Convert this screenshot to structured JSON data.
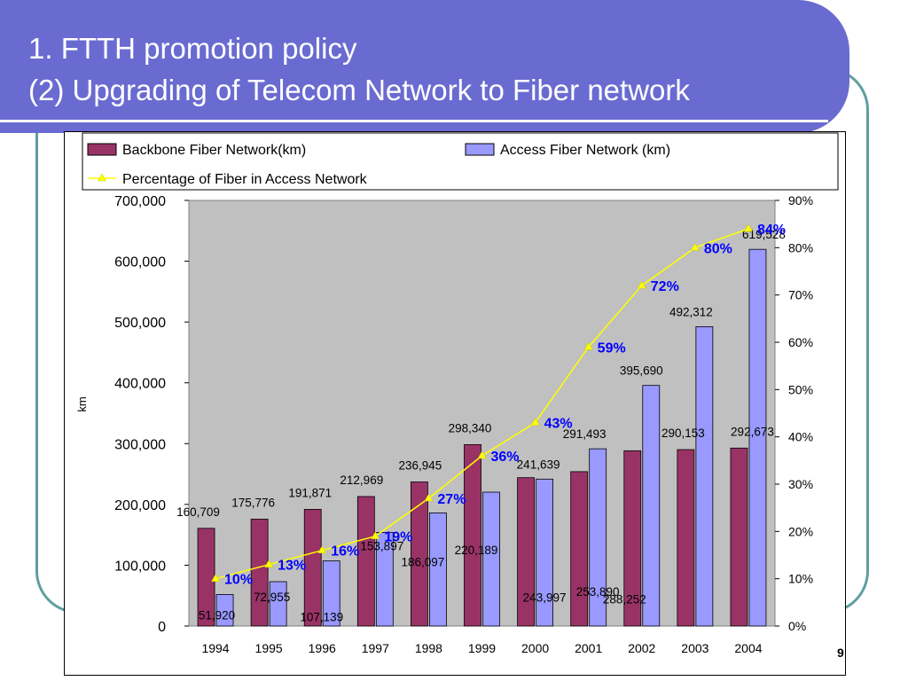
{
  "slide": {
    "title_line1": "1. FTTH promotion policy",
    "title_line2": "(2) Upgrading of Telecom Network to Fiber network",
    "page_number": "9"
  },
  "chart_data": {
    "type": "bar",
    "categories": [
      "1994",
      "1995",
      "1996",
      "1997",
      "1998",
      "1999",
      "2000",
      "2001",
      "2002",
      "2003",
      "2004"
    ],
    "series": [
      {
        "name": "Backbone Fiber Network(km)",
        "type": "bar",
        "axis": "left",
        "color": "#993366",
        "values": [
          160709,
          175776,
          191871,
          212969,
          236945,
          298340,
          243997,
          253890,
          288252,
          290153,
          292673
        ],
        "labels": [
          "160,709",
          "175,776",
          "191,871",
          "212,969",
          "236,945",
          "298,340",
          "243,997",
          "253,890",
          "288,252",
          "290,153",
          "292,673"
        ]
      },
      {
        "name": "Access Fiber Network (km)",
        "type": "bar",
        "axis": "left",
        "color": "#9999ff",
        "values": [
          51920,
          72955,
          107139,
          153897,
          186097,
          220189,
          241639,
          291493,
          395690,
          492312,
          619528
        ],
        "labels": [
          "51,920",
          "72,955",
          "107,139",
          "153,897",
          "186,097",
          "220,189",
          "241,639",
          "291,493",
          "395,690",
          "492,312",
          "619,528"
        ]
      },
      {
        "name": "Percentage of Fiber in Access Network",
        "type": "line",
        "axis": "right",
        "color": "#ffff00",
        "values": [
          10,
          13,
          16,
          19,
          27,
          36,
          43,
          59,
          72,
          80,
          84
        ],
        "labels": [
          "10%",
          "13%",
          "16%",
          "19%",
          "27%",
          "36%",
          "43%",
          "59%",
          "72%",
          "80%",
          "84%"
        ]
      }
    ],
    "ylabel": "km",
    "ylim": [
      0,
      700000
    ],
    "y_ticks": [
      "0",
      "100,000",
      "200,000",
      "300,000",
      "400,000",
      "500,000",
      "600,000",
      "700,000"
    ],
    "y2lim": [
      0,
      90
    ],
    "y2_ticks": [
      "0%",
      "10%",
      "20%",
      "30%",
      "40%",
      "50%",
      "60%",
      "70%",
      "80%",
      "90%"
    ],
    "legend_position": "top",
    "grid": false,
    "plot_background": "#c0c0c0",
    "percent_label_color": "#0000ff"
  }
}
